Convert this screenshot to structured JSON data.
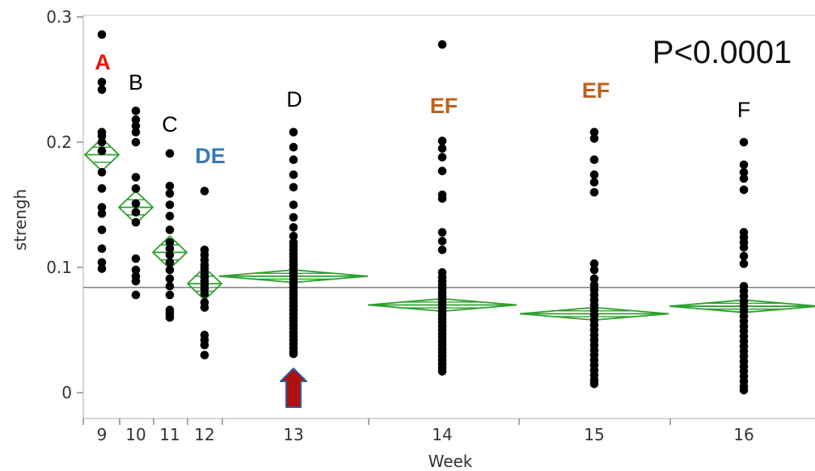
{
  "chart_data": {
    "type": "scatter",
    "subtype": "oneway-means-diamonds",
    "xlabel": "Week",
    "ylabel": "strengh",
    "ylim": [
      0,
      0.3
    ],
    "yticks": [
      "0",
      "0.1",
      "0.2",
      "0.3"
    ],
    "grand_mean": 0.084,
    "annotation": "P<0.0001",
    "colors": {
      "points": "#000000",
      "diamonds": "#2ca02c",
      "grand_mean_line": "#888888",
      "arrow": "#b01010",
      "arrow_stroke": "#2d5fa0"
    },
    "arrow_at_group": "13",
    "groups": [
      {
        "label": "9",
        "letter": "A",
        "letter_color": "#e8140e",
        "letter_bold": true,
        "mean": 0.19,
        "ci": 0.013,
        "points": [
          0.286,
          0.248,
          0.242,
          0.208,
          0.205,
          0.2,
          0.193,
          0.176,
          0.163,
          0.148,
          0.143,
          0.13,
          0.115,
          0.104,
          0.099
        ]
      },
      {
        "label": "10",
        "letter": "B",
        "letter_color": "#000000",
        "letter_bold": false,
        "mean": 0.148,
        "ci": 0.013,
        "points": [
          0.225,
          0.218,
          0.213,
          0.208,
          0.2,
          0.172,
          0.163,
          0.151,
          0.144,
          0.136,
          0.107,
          0.098,
          0.093,
          0.089,
          0.078
        ]
      },
      {
        "label": "11",
        "letter": "C",
        "letter_color": "#000000",
        "letter_bold": false,
        "mean": 0.112,
        "ci": 0.013,
        "points": [
          0.191,
          0.165,
          0.159,
          0.15,
          0.141,
          0.13,
          0.12,
          0.115,
          0.11,
          0.104,
          0.098,
          0.091,
          0.085,
          0.078,
          0.066,
          0.063,
          0.06
        ]
      },
      {
        "label": "12",
        "letter": "DE",
        "letter_color": "#3a78b8",
        "letter_bold": true,
        "mean": 0.087,
        "ci": 0.013,
        "points": [
          0.161,
          0.114,
          0.11,
          0.106,
          0.102,
          0.099,
          0.095,
          0.092,
          0.089,
          0.086,
          0.083,
          0.079,
          0.072,
          0.068,
          0.046,
          0.042,
          0.038,
          0.03
        ]
      },
      {
        "label": "13",
        "letter": "D",
        "letter_color": "#000000",
        "letter_bold": false,
        "mean": 0.093,
        "ci": 0.005,
        "points": [
          0.208,
          0.196,
          0.186,
          0.174,
          0.164,
          0.15,
          0.14,
          0.132,
          0.125,
          0.12,
          0.117,
          0.114,
          0.111,
          0.108,
          0.105,
          0.102,
          0.099,
          0.096,
          0.093,
          0.09,
          0.087,
          0.084,
          0.081,
          0.078,
          0.075,
          0.072,
          0.069,
          0.066,
          0.063,
          0.06,
          0.057,
          0.054,
          0.051,
          0.048,
          0.045,
          0.042,
          0.039,
          0.036,
          0.033,
          0.031
        ]
      },
      {
        "label": "14",
        "letter": "EF",
        "letter_color": "#c0601a",
        "letter_bold": true,
        "mean": 0.07,
        "ci": 0.005,
        "points": [
          0.278,
          0.201,
          0.195,
          0.188,
          0.177,
          0.158,
          0.155,
          0.128,
          0.121,
          0.114,
          0.096,
          0.092,
          0.089,
          0.086,
          0.083,
          0.08,
          0.077,
          0.074,
          0.071,
          0.068,
          0.065,
          0.062,
          0.059,
          0.056,
          0.053,
          0.05,
          0.047,
          0.044,
          0.041,
          0.038,
          0.035,
          0.032,
          0.029,
          0.026,
          0.023,
          0.02,
          0.017
        ]
      },
      {
        "label": "15",
        "letter": "EF",
        "letter_color": "#c0601a",
        "letter_bold": true,
        "mean": 0.063,
        "ci": 0.005,
        "points": [
          0.208,
          0.203,
          0.186,
          0.174,
          0.168,
          0.16,
          0.103,
          0.098,
          0.091,
          0.086,
          0.082,
          0.078,
          0.074,
          0.07,
          0.066,
          0.062,
          0.058,
          0.054,
          0.05,
          0.046,
          0.042,
          0.038,
          0.034,
          0.03,
          0.026,
          0.022,
          0.018,
          0.014,
          0.01,
          0.007
        ]
      },
      {
        "label": "16",
        "letter": "F",
        "letter_color": "#000000",
        "letter_bold": false,
        "mean": 0.069,
        "ci": 0.005,
        "points": [
          0.2,
          0.182,
          0.176,
          0.171,
          0.162,
          0.128,
          0.124,
          0.12,
          0.116,
          0.109,
          0.103,
          0.085,
          0.081,
          0.077,
          0.073,
          0.069,
          0.065,
          0.061,
          0.057,
          0.053,
          0.049,
          0.045,
          0.041,
          0.037,
          0.033,
          0.029,
          0.025,
          0.021,
          0.017,
          0.013,
          0.009,
          0.005,
          0.002
        ]
      }
    ]
  }
}
